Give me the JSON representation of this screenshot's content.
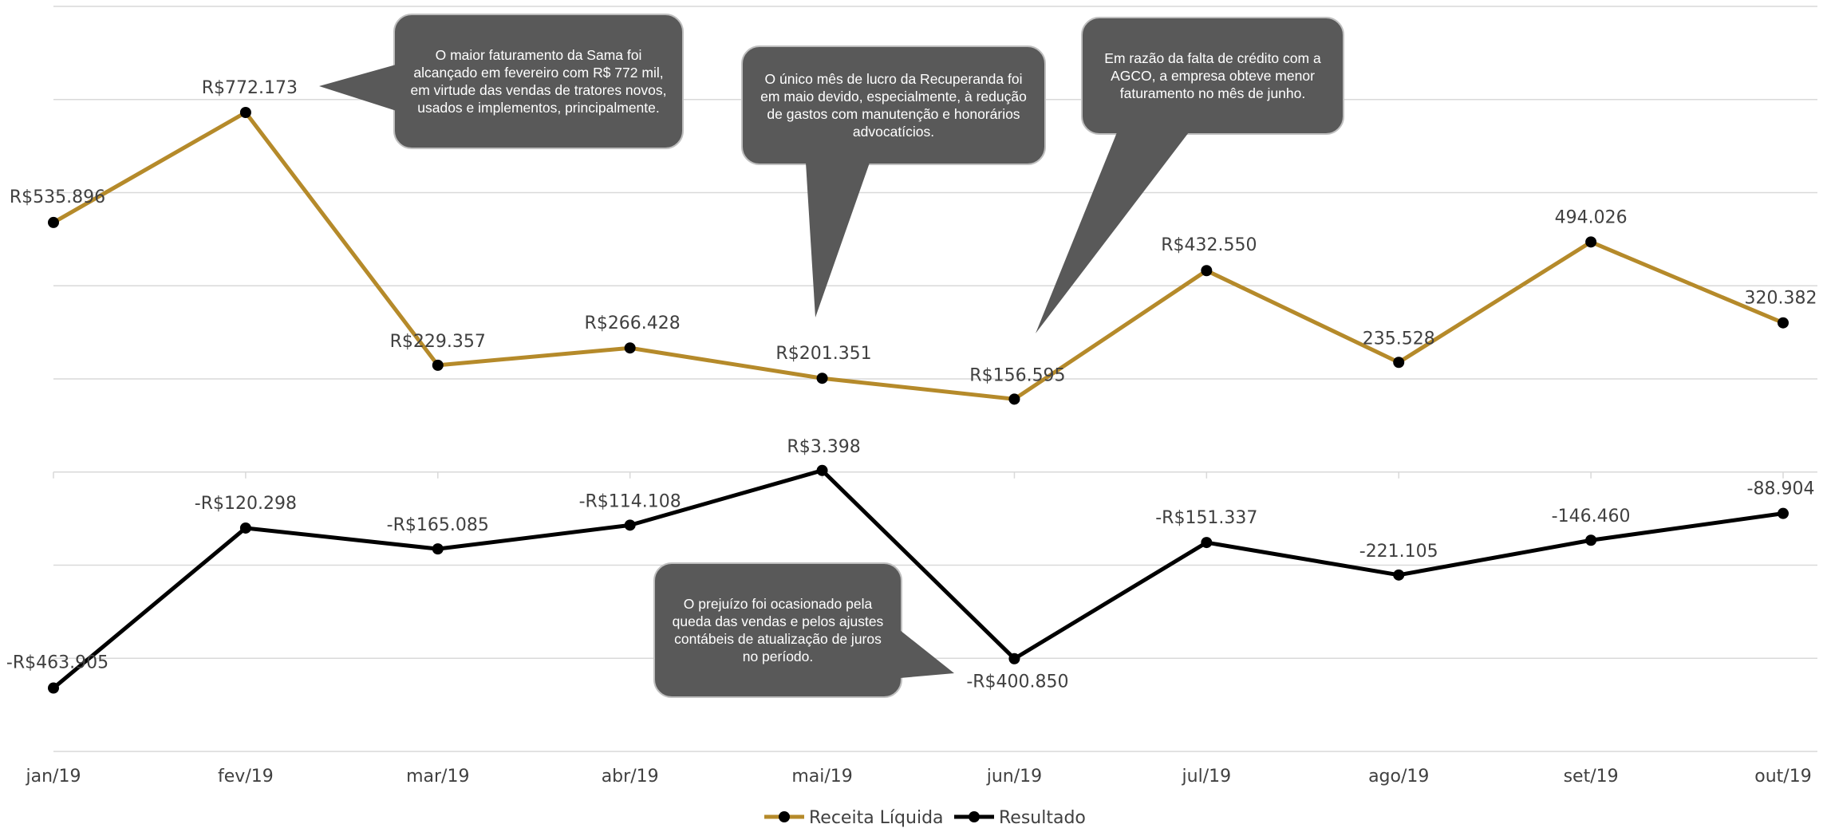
{
  "chart_data": {
    "type": "line",
    "categories": [
      "jan/19",
      "fev/19",
      "mar/19",
      "abr/19",
      "mai/19",
      "jun/19",
      "jul/19",
      "ago/19",
      "set/19",
      "out/19"
    ],
    "series": [
      {
        "name": "Receita Líquida",
        "color": "#B58A2A",
        "values": [
          535896,
          772173,
          229357,
          266428,
          201351,
          156595,
          432550,
          235528,
          494026,
          320382
        ],
        "labels": [
          "R$535.896",
          "R$772.173",
          "R$229.357",
          "R$266.428",
          "R$201.351",
          "R$156.595",
          "R$432.550",
          "235.528",
          "494.026",
          "320.382"
        ]
      },
      {
        "name": "Resultado",
        "color": "#000000",
        "values": [
          -463905,
          -120298,
          -165085,
          -114108,
          3398,
          -400850,
          -151337,
          -221105,
          -146460,
          -88904
        ],
        "labels": [
          "-R$463.905",
          "-R$120.298",
          "-R$165.085",
          "-R$114.108",
          "R$3.398",
          "-R$400.850",
          "-R$151.337",
          "-221.105",
          "-146.460",
          "-88.904"
        ]
      }
    ],
    "ylim": [
      -600000,
      1000000
    ],
    "grid": true,
    "legend": "bottom",
    "annotations": [
      {
        "text": "O maior faturamento da Sama foi alcançado em fevereiro com R$ 772 mil, em virtude das vendas de tratores novos, usados e implementos, principalmente."
      },
      {
        "text": "O único mês de lucro da Recuperanda foi em maio devido, especialmente, à redução de gastos com manutenção e honorários advocatícios."
      },
      {
        "text": "Em razão da falta de crédito com a AGCO, a empresa obteve menor faturamento no mês de junho."
      },
      {
        "text": "O prejuízo foi ocasionado pela queda das vendas e pelos ajustes contábeis de atualização de juros no período."
      }
    ],
    "callout_color": "#595959"
  }
}
